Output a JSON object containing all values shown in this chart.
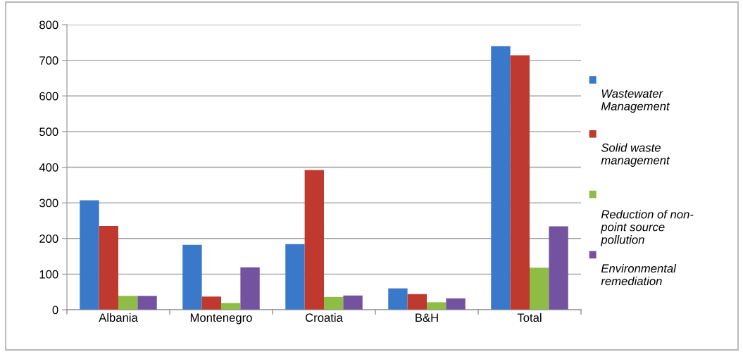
{
  "chart_data": {
    "type": "bar",
    "categories": [
      "Albania",
      "Montenegro",
      "Croatia",
      "B&H",
      "Total"
    ],
    "series": [
      {
        "name": "Wastewater Management",
        "color": "#3a78c9",
        "values": [
          307,
          182,
          184,
          60,
          740
        ]
      },
      {
        "name": "Solid waste management",
        "color": "#c0392f",
        "values": [
          235,
          37,
          392,
          44,
          714
        ]
      },
      {
        "name": "Reduction of non-point source pollution",
        "color": "#8fbc45",
        "values": [
          39,
          19,
          36,
          21,
          118
        ]
      },
      {
        "name": "Environmental remediation",
        "color": "#7352a0",
        "values": [
          39,
          119,
          40,
          32,
          234
        ]
      }
    ],
    "ylim": [
      0,
      800
    ],
    "yticks": [
      0,
      100,
      200,
      300,
      400,
      500,
      600,
      700,
      800
    ],
    "grid": "y",
    "legend": "right"
  }
}
